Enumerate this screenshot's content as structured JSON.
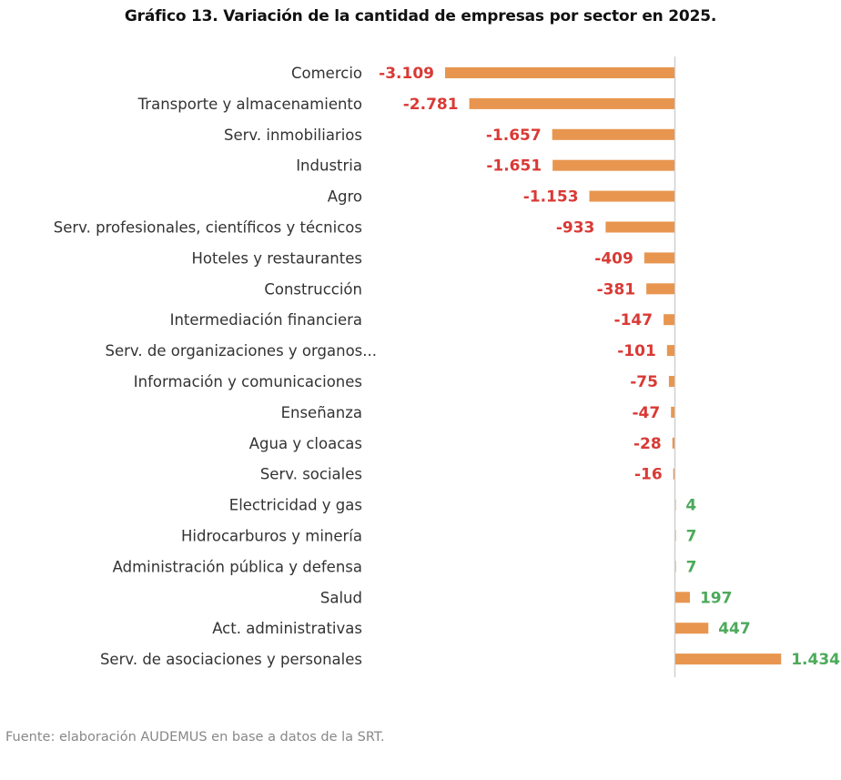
{
  "chart_data": {
    "type": "bar",
    "orientation": "horizontal",
    "title": "Gráfico 13. Variación de la cantidad de empresas por sector en 2025.",
    "xlabel": "",
    "ylabel": "",
    "xlim": [
      -3109,
      1434
    ],
    "grid": false,
    "legend": "none",
    "categories": [
      "Comercio",
      "Transporte y almacenamiento",
      "Serv. inmobiliarios",
      "Industria",
      "Agro",
      "Serv. profesionales, científicos y técnicos",
      "Hoteles y restaurantes",
      "Construcción",
      "Intermediación financiera",
      "Serv. de organizaciones y organos...",
      "Información y comunicaciones",
      "Enseñanza",
      "Agua y cloacas",
      "Serv. sociales",
      "Electricidad y gas",
      "Hidrocarburos y minería",
      "Administración pública y defensa",
      "Salud",
      "Act. administrativas",
      "Serv. de asociaciones y personales"
    ],
    "values": [
      -3109,
      -2781,
      -1657,
      -1651,
      -1153,
      -933,
      -409,
      -381,
      -147,
      -101,
      -75,
      -47,
      -28,
      -16,
      4,
      7,
      7,
      197,
      447,
      1434
    ],
    "data_labels": [
      "-3.109",
      "-2.781",
      "-1.657",
      "-1.651",
      "-1.153",
      "-933",
      "-409",
      "-381",
      "-147",
      "-101",
      "-75",
      "-47",
      "-28",
      "-16",
      "4",
      "7",
      "7",
      "197",
      "447",
      "1.434"
    ],
    "colors": {
      "bar": "#E8964F",
      "negative_label": "#D93A35",
      "positive_label": "#4DAA5B",
      "axis_line": "#D0D0D0"
    }
  },
  "source_note": "Fuente: elaboración AUDEMUS en base a datos de la SRT."
}
